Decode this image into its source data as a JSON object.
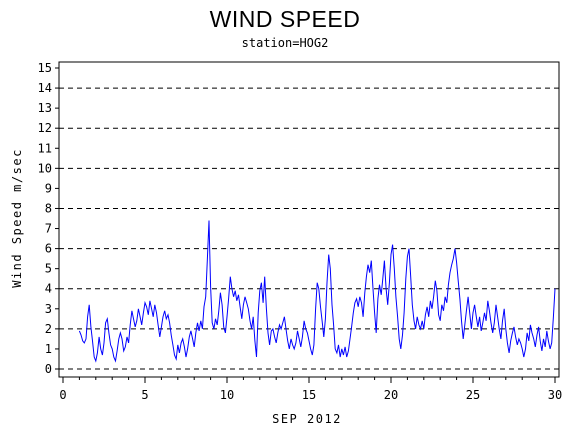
{
  "chart_data": {
    "type": "line",
    "title": "WIND SPEED",
    "subtitle": "station=HOG2",
    "xlabel": "SEP 2012",
    "ylabel": "Wind Speed m/sec",
    "xlim": [
      0,
      30
    ],
    "ylim": [
      0,
      15
    ],
    "x_ticks": [
      "0",
      "5",
      "10",
      "15",
      "20",
      "25",
      "30"
    ],
    "x_ticks_value": [
      0,
      5,
      10,
      15,
      20,
      25,
      30
    ],
    "y_ticks": [
      "0",
      "1",
      "2",
      "3",
      "4",
      "5",
      "6",
      "7",
      "8",
      "9",
      "10",
      "11",
      "12",
      "13",
      "14",
      "15"
    ],
    "gridlines_y": [
      0,
      2,
      4,
      6,
      8,
      10,
      12,
      14
    ],
    "grid": "horizontal dashed at even values",
    "series": [
      {
        "color": "#0000ff",
        "points": [
          [
            1.0,
            1.9
          ],
          [
            1.1,
            1.7
          ],
          [
            1.2,
            1.4
          ],
          [
            1.3,
            1.3
          ],
          [
            1.4,
            1.5
          ],
          [
            1.5,
            2.6
          ],
          [
            1.6,
            3.2
          ],
          [
            1.7,
            2.1
          ],
          [
            1.8,
            1.4
          ],
          [
            1.9,
            0.6
          ],
          [
            2.0,
            0.4
          ],
          [
            2.1,
            0.8
          ],
          [
            2.2,
            1.6
          ],
          [
            2.3,
            1.0
          ],
          [
            2.4,
            0.7
          ],
          [
            2.5,
            1.3
          ],
          [
            2.6,
            2.3
          ],
          [
            2.7,
            2.5
          ],
          [
            2.8,
            1.8
          ],
          [
            2.9,
            1.2
          ],
          [
            3.0,
            1.0
          ],
          [
            3.1,
            0.6
          ],
          [
            3.2,
            0.4
          ],
          [
            3.3,
            0.9
          ],
          [
            3.4,
            1.5
          ],
          [
            3.5,
            1.8
          ],
          [
            3.6,
            1.5
          ],
          [
            3.7,
            0.9
          ],
          [
            3.8,
            1.1
          ],
          [
            3.9,
            1.6
          ],
          [
            4.0,
            1.3
          ],
          [
            4.1,
            2.2
          ],
          [
            4.2,
            2.9
          ],
          [
            4.3,
            2.5
          ],
          [
            4.4,
            2.1
          ],
          [
            4.5,
            2.4
          ],
          [
            4.6,
            3.0
          ],
          [
            4.7,
            2.6
          ],
          [
            4.8,
            2.2
          ],
          [
            4.9,
            2.8
          ],
          [
            5.0,
            3.3
          ],
          [
            5.1,
            3.1
          ],
          [
            5.2,
            2.7
          ],
          [
            5.3,
            3.4
          ],
          [
            5.4,
            3.0
          ],
          [
            5.5,
            2.6
          ],
          [
            5.6,
            3.2
          ],
          [
            5.7,
            2.8
          ],
          [
            5.8,
            2.2
          ],
          [
            5.9,
            1.6
          ],
          [
            6.0,
            2.1
          ],
          [
            6.1,
            2.6
          ],
          [
            6.2,
            2.9
          ],
          [
            6.3,
            2.5
          ],
          [
            6.4,
            2.7
          ],
          [
            6.5,
            2.3
          ],
          [
            6.6,
            1.7
          ],
          [
            6.7,
            1.2
          ],
          [
            6.8,
            0.7
          ],
          [
            6.9,
            0.5
          ],
          [
            7.0,
            1.2
          ],
          [
            7.1,
            0.8
          ],
          [
            7.2,
            1.3
          ],
          [
            7.3,
            1.5
          ],
          [
            7.4,
            1.1
          ],
          [
            7.5,
            0.6
          ],
          [
            7.6,
            1.0
          ],
          [
            7.7,
            1.6
          ],
          [
            7.8,
            1.9
          ],
          [
            7.9,
            1.5
          ],
          [
            8.0,
            1.1
          ],
          [
            8.1,
            1.8
          ],
          [
            8.2,
            2.3
          ],
          [
            8.3,
            1.9
          ],
          [
            8.4,
            2.4
          ],
          [
            8.5,
            2.0
          ],
          [
            8.6,
            3.1
          ],
          [
            8.7,
            3.6
          ],
          [
            8.8,
            5.4
          ],
          [
            8.9,
            7.4
          ],
          [
            9.0,
            4.1
          ],
          [
            9.1,
            2.3
          ],
          [
            9.2,
            2.0
          ],
          [
            9.3,
            2.5
          ],
          [
            9.4,
            2.2
          ],
          [
            9.5,
            2.9
          ],
          [
            9.6,
            3.8
          ],
          [
            9.7,
            3.2
          ],
          [
            9.8,
            2.1
          ],
          [
            9.9,
            1.8
          ],
          [
            10.0,
            2.6
          ],
          [
            10.1,
            3.5
          ],
          [
            10.2,
            4.6
          ],
          [
            10.3,
            4.0
          ],
          [
            10.4,
            3.6
          ],
          [
            10.5,
            3.9
          ],
          [
            10.6,
            3.4
          ],
          [
            10.7,
            3.7
          ],
          [
            10.8,
            3.1
          ],
          [
            10.9,
            2.5
          ],
          [
            11.0,
            3.2
          ],
          [
            11.1,
            3.6
          ],
          [
            11.2,
            3.3
          ],
          [
            11.3,
            3.0
          ],
          [
            11.4,
            2.4
          ],
          [
            11.5,
            2.0
          ],
          [
            11.6,
            2.6
          ],
          [
            11.7,
            1.4
          ],
          [
            11.8,
            0.6
          ],
          [
            11.9,
            2.8
          ],
          [
            12.0,
            3.9
          ],
          [
            12.1,
            4.3
          ],
          [
            12.2,
            3.3
          ],
          [
            12.3,
            4.6
          ],
          [
            12.4,
            3.0
          ],
          [
            12.5,
            1.8
          ],
          [
            12.6,
            1.2
          ],
          [
            12.7,
            1.9
          ],
          [
            12.8,
            2.0
          ],
          [
            12.9,
            1.6
          ],
          [
            13.0,
            1.3
          ],
          [
            13.1,
            1.8
          ],
          [
            13.2,
            2.2
          ],
          [
            13.3,
            2.0
          ],
          [
            13.4,
            2.3
          ],
          [
            13.5,
            2.6
          ],
          [
            13.6,
            2.0
          ],
          [
            13.7,
            1.4
          ],
          [
            13.8,
            1.0
          ],
          [
            13.9,
            1.5
          ],
          [
            14.0,
            1.2
          ],
          [
            14.1,
            1.0
          ],
          [
            14.2,
            1.3
          ],
          [
            14.3,
            1.9
          ],
          [
            14.4,
            1.5
          ],
          [
            14.5,
            1.1
          ],
          [
            14.6,
            1.6
          ],
          [
            14.7,
            2.4
          ],
          [
            14.8,
            2.0
          ],
          [
            14.9,
            1.8
          ],
          [
            15.0,
            1.4
          ],
          [
            15.1,
            1.0
          ],
          [
            15.2,
            0.7
          ],
          [
            15.3,
            1.2
          ],
          [
            15.4,
            3.0
          ],
          [
            15.5,
            4.3
          ],
          [
            15.6,
            4.0
          ],
          [
            15.7,
            3.1
          ],
          [
            15.8,
            2.4
          ],
          [
            15.9,
            1.6
          ],
          [
            16.0,
            2.5
          ],
          [
            16.1,
            4.3
          ],
          [
            16.2,
            5.7
          ],
          [
            16.3,
            5.0
          ],
          [
            16.4,
            3.2
          ],
          [
            16.5,
            2.2
          ],
          [
            16.6,
            1.0
          ],
          [
            16.7,
            0.8
          ],
          [
            16.8,
            1.2
          ],
          [
            16.9,
            0.6
          ],
          [
            17.0,
            1.0
          ],
          [
            17.1,
            0.7
          ],
          [
            17.2,
            1.1
          ],
          [
            17.3,
            0.6
          ],
          [
            17.4,
            0.9
          ],
          [
            17.5,
            1.5
          ],
          [
            17.6,
            2.1
          ],
          [
            17.7,
            2.8
          ],
          [
            17.8,
            3.3
          ],
          [
            17.9,
            3.5
          ],
          [
            18.0,
            3.1
          ],
          [
            18.1,
            3.6
          ],
          [
            18.2,
            3.3
          ],
          [
            18.3,
            2.6
          ],
          [
            18.4,
            3.8
          ],
          [
            18.5,
            4.6
          ],
          [
            18.6,
            5.2
          ],
          [
            18.7,
            4.8
          ],
          [
            18.8,
            5.4
          ],
          [
            18.9,
            4.0
          ],
          [
            19.0,
            2.8
          ],
          [
            19.1,
            1.8
          ],
          [
            19.2,
            3.5
          ],
          [
            19.3,
            4.2
          ],
          [
            19.4,
            3.7
          ],
          [
            19.5,
            4.5
          ],
          [
            19.6,
            5.4
          ],
          [
            19.7,
            4.0
          ],
          [
            19.8,
            3.2
          ],
          [
            19.9,
            4.3
          ],
          [
            20.0,
            5.7
          ],
          [
            20.1,
            6.2
          ],
          [
            20.2,
            5.0
          ],
          [
            20.3,
            3.6
          ],
          [
            20.4,
            2.6
          ],
          [
            20.5,
            1.5
          ],
          [
            20.6,
            1.0
          ],
          [
            20.7,
            1.7
          ],
          [
            20.8,
            2.8
          ],
          [
            20.9,
            4.5
          ],
          [
            21.0,
            5.6
          ],
          [
            21.1,
            6.0
          ],
          [
            21.2,
            4.6
          ],
          [
            21.3,
            3.2
          ],
          [
            21.4,
            2.4
          ],
          [
            21.5,
            2.0
          ],
          [
            21.6,
            2.6
          ],
          [
            21.7,
            2.2
          ],
          [
            21.8,
            2.0
          ],
          [
            21.9,
            2.4
          ],
          [
            22.0,
            2.0
          ],
          [
            22.1,
            2.7
          ],
          [
            22.2,
            3.1
          ],
          [
            22.3,
            2.6
          ],
          [
            22.4,
            3.4
          ],
          [
            22.5,
            3.0
          ],
          [
            22.6,
            3.6
          ],
          [
            22.7,
            4.4
          ],
          [
            22.8,
            3.9
          ],
          [
            22.9,
            2.7
          ],
          [
            23.0,
            2.4
          ],
          [
            23.1,
            3.2
          ],
          [
            23.2,
            2.9
          ],
          [
            23.3,
            3.6
          ],
          [
            23.4,
            3.3
          ],
          [
            23.5,
            4.2
          ],
          [
            23.6,
            4.8
          ],
          [
            23.7,
            5.2
          ],
          [
            23.8,
            5.5
          ],
          [
            23.9,
            6.0
          ],
          [
            24.0,
            5.3
          ],
          [
            24.1,
            4.4
          ],
          [
            24.2,
            3.5
          ],
          [
            24.3,
            2.4
          ],
          [
            24.4,
            1.5
          ],
          [
            24.5,
            2.2
          ],
          [
            24.6,
            2.9
          ],
          [
            24.7,
            3.6
          ],
          [
            24.8,
            2.8
          ],
          [
            24.9,
            2.0
          ],
          [
            25.0,
            2.8
          ],
          [
            25.1,
            3.2
          ],
          [
            25.2,
            2.6
          ],
          [
            25.3,
            2.1
          ],
          [
            25.4,
            2.6
          ],
          [
            25.5,
            1.9
          ],
          [
            25.6,
            2.3
          ],
          [
            25.7,
            2.8
          ],
          [
            25.8,
            2.4
          ],
          [
            25.9,
            3.4
          ],
          [
            26.0,
            2.9
          ],
          [
            26.1,
            2.3
          ],
          [
            26.2,
            1.8
          ],
          [
            26.3,
            2.3
          ],
          [
            26.4,
            3.2
          ],
          [
            26.5,
            2.6
          ],
          [
            26.6,
            2.0
          ],
          [
            26.7,
            1.5
          ],
          [
            26.8,
            2.4
          ],
          [
            26.9,
            3.0
          ],
          [
            27.0,
            2.0
          ],
          [
            27.1,
            1.3
          ],
          [
            27.2,
            0.8
          ],
          [
            27.3,
            1.4
          ],
          [
            27.4,
            1.8
          ],
          [
            27.5,
            2.1
          ],
          [
            27.6,
            1.6
          ],
          [
            27.7,
            1.2
          ],
          [
            27.8,
            1.5
          ],
          [
            27.9,
            1.3
          ],
          [
            28.0,
            1.0
          ],
          [
            28.1,
            0.6
          ],
          [
            28.2,
            1.0
          ],
          [
            28.3,
            1.8
          ],
          [
            28.4,
            1.4
          ],
          [
            28.5,
            2.2
          ],
          [
            28.6,
            1.8
          ],
          [
            28.7,
            1.5
          ],
          [
            28.8,
            1.1
          ],
          [
            28.9,
            1.7
          ],
          [
            29.0,
            2.1
          ],
          [
            29.1,
            1.4
          ],
          [
            29.2,
            0.9
          ],
          [
            29.3,
            1.5
          ],
          [
            29.4,
            1.1
          ],
          [
            29.5,
            1.9
          ],
          [
            29.6,
            1.4
          ],
          [
            29.7,
            1.0
          ],
          [
            29.8,
            1.3
          ],
          [
            29.9,
            2.6
          ],
          [
            30.0,
            4.0
          ]
        ]
      }
    ]
  }
}
